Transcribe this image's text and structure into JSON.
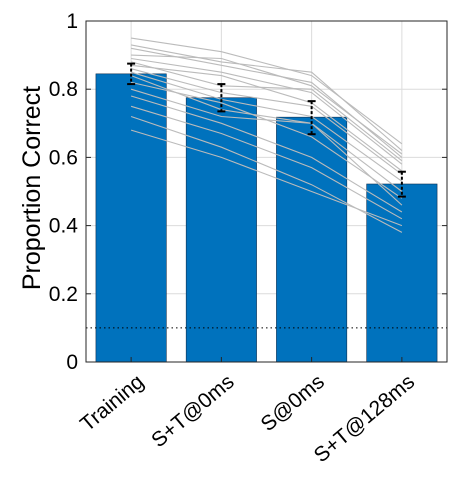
{
  "chart_data": {
    "type": "bar",
    "categories": [
      "Training",
      "S+T@0ms",
      "S@0ms",
      "S+T@128ms"
    ],
    "values": [
      0.845,
      0.775,
      0.718,
      0.522
    ],
    "error_low": [
      0.815,
      0.735,
      0.668,
      0.485
    ],
    "error_high": [
      0.875,
      0.815,
      0.765,
      0.558
    ],
    "ylabel": "Proportion Correct",
    "xlabel": "",
    "ylim": [
      0,
      1
    ],
    "yticks": [
      0,
      0.2,
      0.4,
      0.6,
      0.8,
      1
    ],
    "ytick_labels": [
      "0",
      "0.2",
      "0.4",
      "0.6",
      "0.8",
      "1"
    ],
    "chance_level": 0.1,
    "grid": true,
    "bar_color": "#0072BD",
    "subject_line_color": "#BBBBBB",
    "subjects": [
      [
        0.95,
        0.91,
        0.84,
        0.64
      ],
      [
        0.93,
        0.88,
        0.85,
        0.62
      ],
      [
        0.92,
        0.87,
        0.82,
        0.6
      ],
      [
        0.9,
        0.89,
        0.81,
        0.61
      ],
      [
        0.89,
        0.85,
        0.79,
        0.58
      ],
      [
        0.88,
        0.81,
        0.8,
        0.59
      ],
      [
        0.87,
        0.84,
        0.76,
        0.56
      ],
      [
        0.86,
        0.79,
        0.75,
        0.55
      ],
      [
        0.85,
        0.77,
        0.72,
        0.53
      ],
      [
        0.84,
        0.74,
        0.7,
        0.5
      ],
      [
        0.82,
        0.76,
        0.66,
        0.48
      ],
      [
        0.8,
        0.72,
        0.7,
        0.46
      ],
      [
        0.78,
        0.7,
        0.6,
        0.44
      ],
      [
        0.75,
        0.67,
        0.57,
        0.42
      ],
      [
        0.72,
        0.63,
        0.52,
        0.38
      ],
      [
        0.68,
        0.6,
        0.5,
        0.4
      ]
    ]
  }
}
